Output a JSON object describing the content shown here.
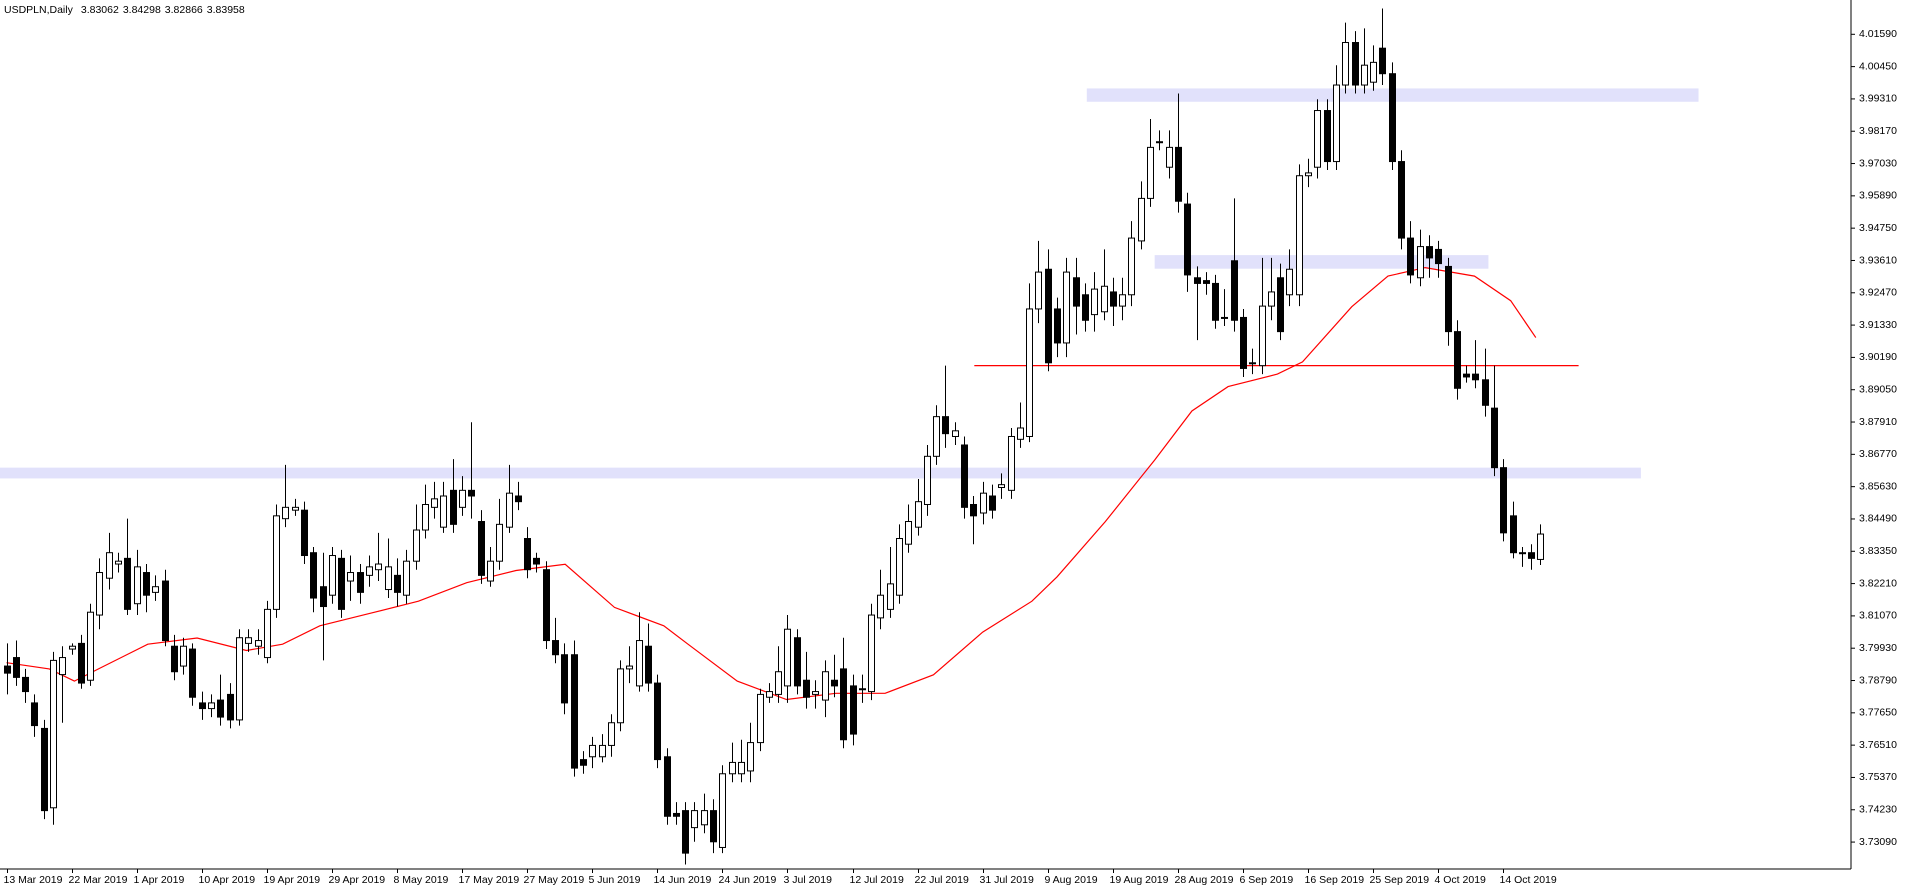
{
  "chart_data": {
    "type": "candlestick",
    "symbol": "USDPLN,Daily",
    "categories": [
      "13 Mar 2019",
      null,
      null,
      null,
      null,
      null,
      null,
      "22 Mar 2019",
      null,
      null,
      null,
      null,
      null,
      null,
      "1 Apr 2019",
      null,
      null,
      null,
      null,
      null,
      null,
      "10 Apr 2019",
      null,
      null,
      null,
      null,
      null,
      null,
      "19 Apr 2019",
      null,
      null,
      null,
      null,
      null,
      null,
      "29 Apr 2019",
      null,
      null,
      null,
      null,
      null,
      null,
      "8 May 2019",
      null,
      null,
      null,
      null,
      null,
      null,
      "17 May 2019",
      null,
      null,
      null,
      null,
      null,
      null,
      "27 May 2019",
      null,
      null,
      null,
      null,
      null,
      null,
      "5 Jun 2019",
      null,
      null,
      null,
      null,
      null,
      null,
      "14 Jun 2019",
      null,
      null,
      null,
      null,
      null,
      null,
      "24 Jun 2019",
      null,
      null,
      null,
      null,
      null,
      null,
      "3 Jul 2019",
      null,
      null,
      null,
      null,
      null,
      null,
      "12 Jul 2019",
      null,
      null,
      null,
      null,
      null,
      null,
      "22 Jul 2019",
      null,
      null,
      null,
      null,
      null,
      null,
      "31 Jul 2019",
      null,
      null,
      null,
      null,
      null,
      null,
      "9 Aug 2019",
      null,
      null,
      null,
      null,
      null,
      null,
      "19 Aug 2019",
      null,
      null,
      null,
      null,
      null,
      null,
      "28 Aug 2019",
      null,
      null,
      null,
      null,
      null,
      null,
      "6 Sep 2019",
      null,
      null,
      null,
      null,
      null,
      null,
      "16 Sep 2019",
      null,
      null,
      null,
      null,
      null,
      null,
      "25 Sep 2019",
      null,
      null,
      null,
      null,
      null,
      null,
      "4 Oct 2019",
      null,
      null,
      null,
      null,
      null,
      null,
      "14 Oct 2019",
      null,
      null,
      null,
      null
    ],
    "candles": [
      [
        3.793,
        3.801,
        3.783,
        3.7905
      ],
      [
        3.796,
        3.802,
        3.786,
        3.789
      ],
      [
        3.789,
        3.792,
        3.78,
        3.784
      ],
      [
        3.78,
        3.783,
        3.768,
        3.772
      ],
      [
        3.771,
        3.774,
        3.739,
        3.742
      ],
      [
        3.743,
        3.798,
        3.737,
        3.795
      ],
      [
        3.79,
        3.8,
        3.773,
        3.796
      ],
      [
        3.799,
        3.801,
        3.797,
        3.8
      ],
      [
        3.801,
        3.804,
        3.785,
        3.787
      ],
      [
        3.788,
        3.815,
        3.786,
        3.812
      ],
      [
        3.811,
        3.831,
        3.806,
        3.826
      ],
      [
        3.824,
        3.84,
        3.82,
        3.833
      ],
      [
        3.829,
        3.833,
        3.826,
        3.83
      ],
      [
        3.831,
        3.845,
        3.811,
        3.813
      ],
      [
        3.815,
        3.834,
        3.811,
        3.828
      ],
      [
        3.826,
        3.829,
        3.812,
        3.818
      ],
      [
        3.819,
        3.825,
        3.816,
        3.821
      ],
      [
        3.823,
        3.827,
        3.8,
        3.802
      ],
      [
        3.8,
        3.804,
        3.788,
        3.791
      ],
      [
        3.793,
        3.803,
        3.79,
        3.8
      ],
      [
        3.799,
        3.801,
        3.779,
        3.782
      ],
      [
        3.78,
        3.784,
        3.774,
        3.778
      ],
      [
        3.778,
        3.783,
        3.775,
        3.78
      ],
      [
        3.781,
        3.79,
        3.772,
        3.775
      ],
      [
        3.783,
        3.787,
        3.771,
        3.774
      ],
      [
        3.774,
        3.806,
        3.772,
        3.803
      ],
      [
        3.801,
        3.806,
        3.798,
        3.803
      ],
      [
        3.8,
        3.806,
        3.797,
        3.802
      ],
      [
        3.796,
        3.816,
        3.794,
        3.813
      ],
      [
        3.813,
        3.85,
        3.81,
        3.846
      ],
      [
        3.845,
        3.864,
        3.842,
        3.849
      ],
      [
        3.848,
        3.852,
        3.846,
        3.849
      ],
      [
        3.848,
        3.851,
        3.829,
        3.832
      ],
      [
        3.833,
        3.835,
        3.812,
        3.817
      ],
      [
        3.821,
        3.833,
        3.795,
        3.814
      ],
      [
        3.818,
        3.835,
        3.815,
        3.832
      ],
      [
        3.831,
        3.834,
        3.81,
        3.813
      ],
      [
        3.823,
        3.832,
        3.816,
        3.826
      ],
      [
        3.826,
        3.829,
        3.815,
        3.819
      ],
      [
        3.825,
        3.832,
        3.821,
        3.828
      ],
      [
        3.827,
        3.84,
        3.823,
        3.829
      ],
      [
        3.82,
        3.838,
        3.817,
        3.828
      ],
      [
        3.825,
        3.831,
        3.814,
        3.819
      ],
      [
        3.818,
        3.834,
        3.815,
        3.83
      ],
      [
        3.83,
        3.85,
        3.827,
        3.841
      ],
      [
        3.841,
        3.857,
        3.838,
        3.85
      ],
      [
        3.849,
        3.858,
        3.845,
        3.852
      ],
      [
        3.842,
        3.858,
        3.84,
        3.853
      ],
      [
        3.855,
        3.866,
        3.84,
        3.843
      ],
      [
        3.849,
        3.86,
        3.846,
        3.855
      ],
      [
        3.855,
        3.879,
        3.845,
        3.853
      ],
      [
        3.844,
        3.848,
        3.822,
        3.825
      ],
      [
        3.823,
        3.835,
        3.821,
        3.83
      ],
      [
        3.83,
        3.852,
        3.827,
        3.843
      ],
      [
        3.842,
        3.864,
        3.84,
        3.854
      ],
      [
        3.853,
        3.858,
        3.848,
        3.851
      ],
      [
        3.838,
        3.842,
        3.824,
        3.827
      ],
      [
        3.831,
        3.833,
        3.826,
        3.829
      ],
      [
        3.827,
        3.83,
        3.799,
        3.802
      ],
      [
        3.802,
        3.81,
        3.794,
        3.797
      ],
      [
        3.797,
        3.801,
        3.776,
        3.78
      ],
      [
        3.797,
        3.802,
        3.754,
        3.757
      ],
      [
        3.76,
        3.763,
        3.755,
        3.758
      ],
      [
        3.761,
        3.768,
        3.757,
        3.765
      ],
      [
        3.761,
        3.769,
        3.759,
        3.765
      ],
      [
        3.765,
        3.776,
        3.761,
        3.773
      ],
      [
        3.773,
        3.795,
        3.77,
        3.792
      ],
      [
        3.792,
        3.8,
        3.787,
        3.793
      ],
      [
        3.786,
        3.812,
        3.784,
        3.802
      ],
      [
        3.8,
        3.808,
        3.784,
        3.787
      ],
      [
        3.787,
        3.79,
        3.757,
        3.76
      ],
      [
        3.761,
        3.764,
        3.737,
        3.74
      ],
      [
        3.741,
        3.745,
        3.737,
        3.74
      ],
      [
        3.742,
        3.745,
        3.723,
        3.727
      ],
      [
        3.736,
        3.745,
        3.731,
        3.742
      ],
      [
        3.737,
        3.748,
        3.734,
        3.742
      ],
      [
        3.742,
        3.746,
        3.727,
        3.731
      ],
      [
        3.729,
        3.758,
        3.727,
        3.755
      ],
      [
        3.755,
        3.766,
        3.752,
        3.759
      ],
      [
        3.755,
        3.767,
        3.752,
        3.759
      ],
      [
        3.756,
        3.773,
        3.752,
        3.766
      ],
      [
        3.766,
        3.785,
        3.763,
        3.783
      ],
      [
        3.782,
        3.787,
        3.78,
        3.784
      ],
      [
        3.783,
        3.8,
        3.78,
        3.791
      ],
      [
        3.786,
        3.811,
        3.78,
        3.806
      ],
      [
        3.803,
        3.806,
        3.783,
        3.786
      ],
      [
        3.788,
        3.798,
        3.778,
        3.782
      ],
      [
        3.783,
        3.788,
        3.778,
        3.784
      ],
      [
        3.781,
        3.795,
        3.775,
        3.791
      ],
      [
        3.788,
        3.797,
        3.782,
        3.786
      ],
      [
        3.792,
        3.803,
        3.764,
        3.767
      ],
      [
        3.786,
        3.79,
        3.765,
        3.769
      ],
      [
        3.785,
        3.79,
        3.78,
        3.785
      ],
      [
        3.784,
        3.815,
        3.781,
        3.811
      ],
      [
        3.81,
        3.827,
        3.806,
        3.818
      ],
      [
        3.813,
        3.835,
        3.81,
        3.822
      ],
      [
        3.818,
        3.843,
        3.815,
        3.838
      ],
      [
        3.836,
        3.85,
        3.833,
        3.844
      ],
      [
        3.842,
        3.859,
        3.839,
        3.851
      ],
      [
        3.85,
        3.871,
        3.846,
        3.867
      ],
      [
        3.867,
        3.885,
        3.864,
        3.881
      ],
      [
        3.881,
        3.899,
        3.87,
        3.875
      ],
      [
        3.874,
        3.879,
        3.871,
        3.876
      ],
      [
        3.871,
        3.874,
        3.845,
        3.849
      ],
      [
        3.85,
        3.853,
        3.836,
        3.846
      ],
      [
        3.847,
        3.858,
        3.843,
        3.854
      ],
      [
        3.853,
        3.857,
        3.845,
        3.848
      ],
      [
        3.856,
        3.861,
        3.852,
        3.857
      ],
      [
        3.855,
        3.877,
        3.852,
        3.874
      ],
      [
        3.873,
        3.886,
        3.87,
        3.877
      ],
      [
        3.874,
        3.928,
        3.872,
        3.919
      ],
      [
        3.919,
        3.943,
        3.914,
        3.932
      ],
      [
        3.933,
        3.94,
        3.897,
        3.9
      ],
      [
        3.919,
        3.923,
        3.902,
        3.907
      ],
      [
        3.907,
        3.937,
        3.902,
        3.932
      ],
      [
        3.93,
        3.937,
        3.91,
        3.92
      ],
      [
        3.924,
        3.928,
        3.911,
        3.915
      ],
      [
        3.917,
        3.932,
        3.911,
        3.926
      ],
      [
        3.918,
        3.94,
        3.915,
        3.927
      ],
      [
        3.925,
        3.93,
        3.913,
        3.92
      ],
      [
        3.92,
        3.93,
        3.915,
        3.924
      ],
      [
        3.924,
        3.95,
        3.92,
        3.944
      ],
      [
        3.943,
        3.964,
        3.94,
        3.958
      ],
      [
        3.958,
        3.986,
        3.955,
        3.976
      ],
      [
        3.978,
        3.982,
        3.975,
        3.978
      ],
      [
        3.969,
        3.982,
        3.965,
        3.976
      ],
      [
        3.976,
        3.995,
        3.953,
        3.957
      ],
      [
        3.956,
        3.96,
        3.925,
        3.931
      ],
      [
        3.93,
        3.934,
        3.908,
        3.928
      ],
      [
        3.929,
        3.932,
        3.924,
        3.928
      ],
      [
        3.928,
        3.931,
        3.912,
        3.915
      ],
      [
        3.916,
        3.926,
        3.913,
        3.916
      ],
      [
        3.936,
        3.958,
        3.911,
        3.915
      ],
      [
        3.916,
        3.919,
        3.895,
        3.898
      ],
      [
        3.9,
        3.905,
        3.896,
        3.9
      ],
      [
        3.899,
        3.937,
        3.896,
        3.92
      ],
      [
        3.92,
        3.937,
        3.915,
        3.925
      ],
      [
        3.93,
        3.935,
        3.908,
        3.911
      ],
      [
        3.924,
        3.94,
        3.92,
        3.933
      ],
      [
        3.924,
        3.97,
        3.92,
        3.966
      ],
      [
        3.966,
        3.972,
        3.962,
        3.967
      ],
      [
        3.969,
        3.993,
        3.965,
        3.989
      ],
      [
        3.989,
        3.993,
        3.968,
        3.971
      ],
      [
        3.971,
        4.005,
        3.968,
        3.998
      ],
      [
        3.998,
        4.02,
        3.995,
        4.013
      ],
      [
        4.013,
        4.017,
        3.995,
        3.998
      ],
      [
        3.998,
        4.018,
        3.995,
        4.005
      ],
      [
        3.999,
        4.012,
        3.996,
        4.006
      ],
      [
        4.011,
        4.025,
        3.998,
        4.002
      ],
      [
        4.002,
        4.006,
        3.968,
        3.971
      ],
      [
        3.971,
        3.975,
        3.94,
        3.944
      ],
      [
        3.944,
        3.95,
        3.928,
        3.931
      ],
      [
        3.93,
        3.947,
        3.927,
        3.941
      ],
      [
        3.941,
        3.945,
        3.93,
        3.937
      ],
      [
        3.94,
        3.943,
        3.93,
        3.935
      ],
      [
        3.934,
        3.937,
        3.906,
        3.911
      ],
      [
        3.911,
        3.915,
        3.887,
        3.891
      ],
      [
        3.896,
        3.899,
        3.893,
        3.895
      ],
      [
        3.896,
        3.908,
        3.891,
        3.894
      ],
      [
        3.894,
        3.905,
        3.881,
        3.885
      ],
      [
        3.884,
        3.899,
        3.86,
        3.863
      ],
      [
        3.863,
        3.866,
        3.837,
        3.84
      ],
      [
        3.846,
        3.851,
        3.831,
        3.833
      ],
      [
        3.833,
        3.835,
        3.828,
        3.833
      ],
      [
        3.833,
        3.836,
        3.827,
        3.831
      ],
      [
        3.83062,
        3.84298,
        3.82866,
        3.83958
      ]
    ],
    "bull_color": "#ffffff",
    "bear_color": "#000000",
    "ma": {
      "color": "#ff0000",
      "x": [
        0,
        4.6,
        7.3,
        9.9,
        15.2,
        20.5,
        25.8,
        29.7,
        33.7,
        39,
        44.3,
        49.5,
        54.8,
        60.1,
        65.4,
        70.7,
        73.3,
        78.6,
        83.9,
        89.2,
        94.5,
        99.7,
        105,
        110.3,
        113,
        118.2,
        123.5,
        127.5,
        131.4,
        136.7,
        139.4,
        144.7,
        148.6,
        152.6,
        157.9,
        161.8,
        164.5
      ],
      "values": [
        3.7942,
        3.792,
        3.7877,
        3.792,
        3.8007,
        3.8029,
        3.7985,
        3.8007,
        3.8072,
        3.8115,
        3.8159,
        3.8224,
        3.8267,
        3.8289,
        3.8137,
        3.8072,
        3.8007,
        3.7877,
        3.7812,
        3.7834,
        3.7834,
        3.7899,
        3.805,
        3.8159,
        3.8245,
        3.844,
        3.8657,
        3.883,
        3.8916,
        3.896,
        3.9003,
        3.9198,
        3.9306,
        3.9336,
        3.9306,
        3.9219,
        3.9089
      ]
    },
    "zones": [
      {
        "low": 3.9921,
        "high": 3.9968,
        "from": 116.2,
        "to": 182
      },
      {
        "low": 3.9332,
        "high": 3.938,
        "from": 123.5,
        "to": 159.4
      },
      {
        "low": 3.8592,
        "high": 3.863,
        "from": -0.7,
        "to": 175.8
      }
    ],
    "zone_color": "#e1e1fb",
    "level": {
      "value": 3.899,
      "from": 104.1,
      "to": 169.1,
      "color": "#ff0000"
    },
    "xlim": [
      -0.7,
      198.4
    ],
    "ylim": [
      3.7214,
      4.028
    ],
    "yticks": [
      {
        "value": 4.0159,
        "label": "4.01590"
      },
      {
        "value": 4.0045,
        "label": "4.00450"
      },
      {
        "value": 3.9931,
        "label": "3.99310"
      },
      {
        "value": 3.9817,
        "label": "3.98170"
      },
      {
        "value": 3.9703,
        "label": "3.97030"
      },
      {
        "value": 3.9589,
        "label": "3.95890"
      },
      {
        "value": 3.9475,
        "label": "3.94750"
      },
      {
        "value": 3.9361,
        "label": "3.93610"
      },
      {
        "value": 3.9247,
        "label": "3.92470"
      },
      {
        "value": 3.9133,
        "label": "3.91330"
      },
      {
        "value": 3.9019,
        "label": "3.90190"
      },
      {
        "value": 3.8905,
        "label": "3.89050"
      },
      {
        "value": 3.8791,
        "label": "3.87910"
      },
      {
        "value": 3.8677,
        "label": "3.86770"
      },
      {
        "value": 3.8563,
        "label": "3.85630"
      },
      {
        "value": 3.8449,
        "label": "3.84490"
      },
      {
        "value": 3.8335,
        "label": "3.83350"
      },
      {
        "value": 3.8221,
        "label": "3.82210"
      },
      {
        "value": 3.8107,
        "label": "3.81070"
      },
      {
        "value": 3.7993,
        "label": "3.79930"
      },
      {
        "value": 3.7879,
        "label": "3.78790"
      },
      {
        "value": 3.7765,
        "label": "3.77650"
      },
      {
        "value": 3.7651,
        "label": "3.76510"
      },
      {
        "value": 3.7537,
        "label": "3.75370"
      },
      {
        "value": 3.7423,
        "label": "3.74230"
      },
      {
        "value": 3.7309,
        "label": "3.73090"
      }
    ]
  }
}
